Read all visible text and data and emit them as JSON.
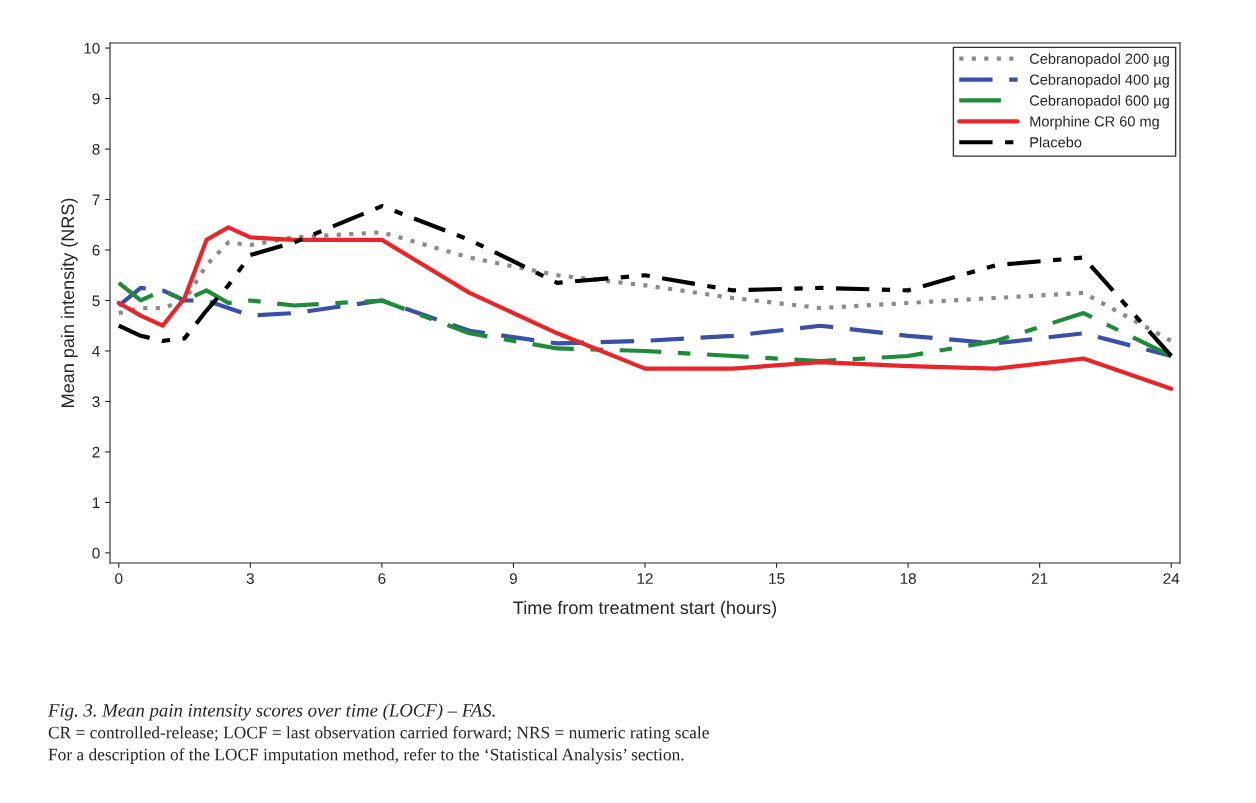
{
  "chart_data": {
    "type": "line",
    "xlabel": "Time from treatment start (hours)",
    "ylabel": "Mean pain intensity (NRS)",
    "x": [
      0,
      0.5,
      1,
      1.5,
      2,
      2.5,
      3,
      4,
      6,
      8,
      10,
      12,
      14,
      16,
      18,
      20,
      22,
      24
    ],
    "series": [
      {
        "name": "Cebranopadol 200 µg",
        "color": "#8a8a8a",
        "line_style": "dotted",
        "values": [
          4.75,
          4.85,
          4.85,
          5.0,
          5.7,
          6.15,
          6.1,
          6.25,
          6.35,
          5.85,
          5.5,
          5.3,
          5.05,
          4.85,
          4.95,
          5.05,
          5.15,
          4.2
        ]
      },
      {
        "name": "Cebranopadol 400 µg",
        "color": "#3a4fa8",
        "line_style": "dashed",
        "values": [
          4.9,
          5.25,
          5.2,
          5.0,
          5.0,
          4.85,
          4.7,
          4.75,
          5.0,
          4.4,
          4.15,
          4.2,
          4.3,
          4.5,
          4.3,
          4.15,
          4.35,
          3.9
        ]
      },
      {
        "name": "Cebranopadol 600 µg",
        "color": "#1e8a3a",
        "line_style": "dashdot",
        "values": [
          5.35,
          5.0,
          5.2,
          5.0,
          5.2,
          4.95,
          5.0,
          4.9,
          5.0,
          4.35,
          4.05,
          4.0,
          3.9,
          3.8,
          3.9,
          4.2,
          4.75,
          3.9
        ]
      },
      {
        "name": "Morphine CR 60 mg",
        "color": "#e8262a",
        "line_style": "solid",
        "values": [
          4.95,
          4.7,
          4.5,
          5.05,
          6.2,
          6.45,
          6.25,
          6.2,
          6.2,
          5.15,
          4.35,
          3.65,
          3.65,
          3.78,
          3.7,
          3.65,
          3.85,
          3.25
        ]
      },
      {
        "name": "Placebo",
        "color": "#000000",
        "line_style": "dashdotdot",
        "values": [
          4.5,
          4.3,
          4.2,
          4.25,
          4.8,
          5.3,
          5.9,
          6.15,
          6.87,
          6.2,
          5.35,
          5.5,
          5.2,
          5.25,
          5.2,
          5.7,
          5.85,
          3.9
        ]
      }
    ],
    "xlim": [
      -0.2,
      24.2
    ],
    "xticks": [
      0,
      3,
      6,
      9,
      12,
      15,
      18,
      21,
      24
    ],
    "ylim": [
      -0.2,
      10.1
    ],
    "yticks": [
      0,
      1,
      2,
      3,
      4,
      5,
      6,
      7,
      8,
      9,
      10
    ],
    "grid": false,
    "legend": "top right",
    "marker": "none",
    "annotations": [
      "Fig. 3. Mean pain intensity scores over time (LOCF) – FAS.",
      "CR = controlled-release; LOCF = last observation carried forward; NRS = numeric rating scale",
      "For a description of the LOCF imputation method, refer to the ‘Statistical Analysis’ section."
    ]
  }
}
